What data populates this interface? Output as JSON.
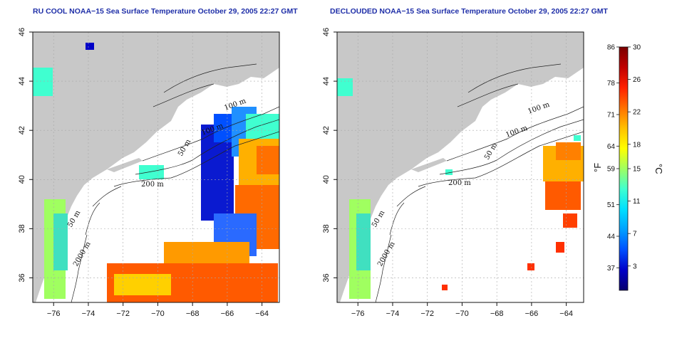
{
  "panels": [
    {
      "title": "RU COOL NOAA−15 Sea Surface Temperature October 29, 2005 22:27 GMT",
      "contour_labels": [
        "100 m",
        "100 m",
        "50 m",
        "200 m",
        "50 m",
        "2000 m"
      ]
    },
    {
      "title": "DECLOUDED NOAA−15 Sea Surface Temperature October 29, 2005 22:27 GMT",
      "contour_labels": [
        "100 m",
        "100 m",
        "50 m",
        "200 m",
        "50 m",
        "2000 m"
      ]
    }
  ],
  "axes": {
    "x_ticks": [
      "−76",
      "−74",
      "−72",
      "−70",
      "−68",
      "−66",
      "−64"
    ],
    "y_ticks": [
      "36",
      "38",
      "40",
      "42",
      "44",
      "46"
    ]
  },
  "colorbar": {
    "fahrenheit_label": "°F",
    "celsius_label": "°C",
    "fahrenheit_ticks": [
      "86",
      "78",
      "71",
      "64",
      "59",
      "51",
      "44",
      "37"
    ],
    "celsius_ticks": [
      "30",
      "26",
      "22",
      "18",
      "15",
      "11",
      "7",
      "3"
    ],
    "colors": [
      "#08006e",
      "#0000c8",
      "#0050ff",
      "#00a0ff",
      "#00e0ff",
      "#40ffd0",
      "#a0ff60",
      "#ffff00",
      "#ffc000",
      "#ff7000",
      "#ff2000",
      "#c00000",
      "#7a0000"
    ]
  },
  "colors": {
    "land": "#c8c8c8",
    "title": "#1f2fa8",
    "grid": "#a8a8a8"
  }
}
